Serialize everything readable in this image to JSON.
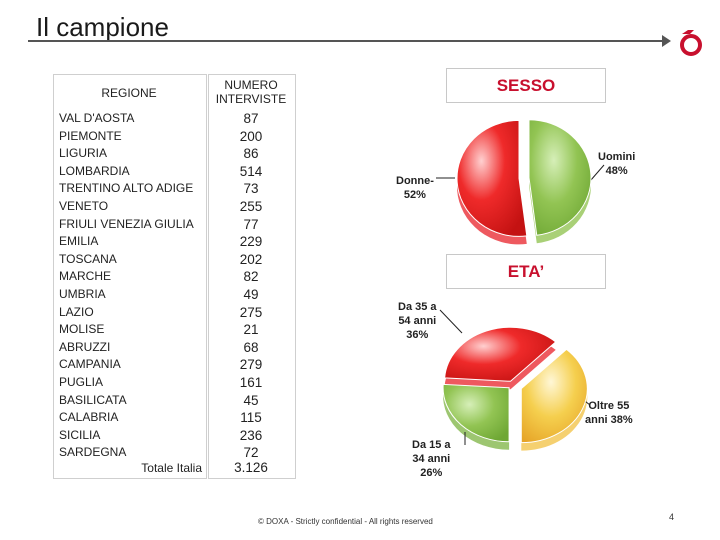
{
  "header": {
    "title": "Il campione"
  },
  "table": {
    "col_region": "REGIONE",
    "col_number": "NUMERO INTERVISTE",
    "rows": [
      {
        "region": "VAL D'AOSTA",
        "count": "87"
      },
      {
        "region": "PIEMONTE",
        "count": "200"
      },
      {
        "region": "LIGURIA",
        "count": "86"
      },
      {
        "region": "LOMBARDIA",
        "count": "514"
      },
      {
        "region": "TRENTINO ALTO ADIGE",
        "count": "73"
      },
      {
        "region": "VENETO",
        "count": "255"
      },
      {
        "region": "FRIULI VENEZIA GIULIA",
        "count": "77"
      },
      {
        "region": "EMILIA",
        "count": "229"
      },
      {
        "region": "TOSCANA",
        "count": "202"
      },
      {
        "region": "MARCHE",
        "count": "82"
      },
      {
        "region": "UMBRIA",
        "count": "49"
      },
      {
        "region": "LAZIO",
        "count": "275"
      },
      {
        "region": "MOLISE",
        "count": "21"
      },
      {
        "region": "ABRUZZI",
        "count": "68"
      },
      {
        "region": "CAMPANIA",
        "count": "279"
      },
      {
        "region": "PUGLIA",
        "count": "161"
      },
      {
        "region": "BASILICATA",
        "count": "45"
      },
      {
        "region": "CALABRIA",
        "count": "115"
      },
      {
        "region": "SICILIA",
        "count": "236"
      },
      {
        "region": "SARDEGNA",
        "count": "72"
      }
    ],
    "total_label": "Totale Italia",
    "total_value": "3.126"
  },
  "chart_data": [
    {
      "type": "pie",
      "title": "SESSO",
      "categories": [
        "Donne",
        "Uomini"
      ],
      "values": [
        52,
        48
      ],
      "labels": [
        "Donne 52%",
        "Uomini 48%"
      ],
      "colors": [
        "#e8212a",
        "#8cc04a"
      ]
    },
    {
      "type": "pie",
      "title": "ETA’",
      "categories": [
        "Da 35 a 54 anni",
        "Oltre 55 anni",
        "Da 15 a 34 anni"
      ],
      "values": [
        36,
        38,
        26
      ],
      "labels": [
        "Da 35 a 54 anni 36%",
        "Oltre 55 anni 38%",
        "Da 15 a 34 anni 26%"
      ],
      "colors": [
        "#e8212a",
        "#f2c040",
        "#7cb342"
      ]
    }
  ],
  "labels": {
    "donne": [
      "Donne-",
      "52%"
    ],
    "uomini": [
      "Uomini",
      "48%"
    ],
    "eta_35_54": [
      "Da 35 a",
      "54 anni",
      "36%"
    ],
    "eta_55": [
      "Oltre 55",
      "anni 38%"
    ],
    "eta_15_34": [
      "Da 15 a",
      "34 anni",
      "26%"
    ]
  },
  "footer": {
    "text": "© DOXA - Strictly confidential - All rights reserved",
    "page": "4"
  },
  "brand": {
    "accent": "#c8102e"
  }
}
